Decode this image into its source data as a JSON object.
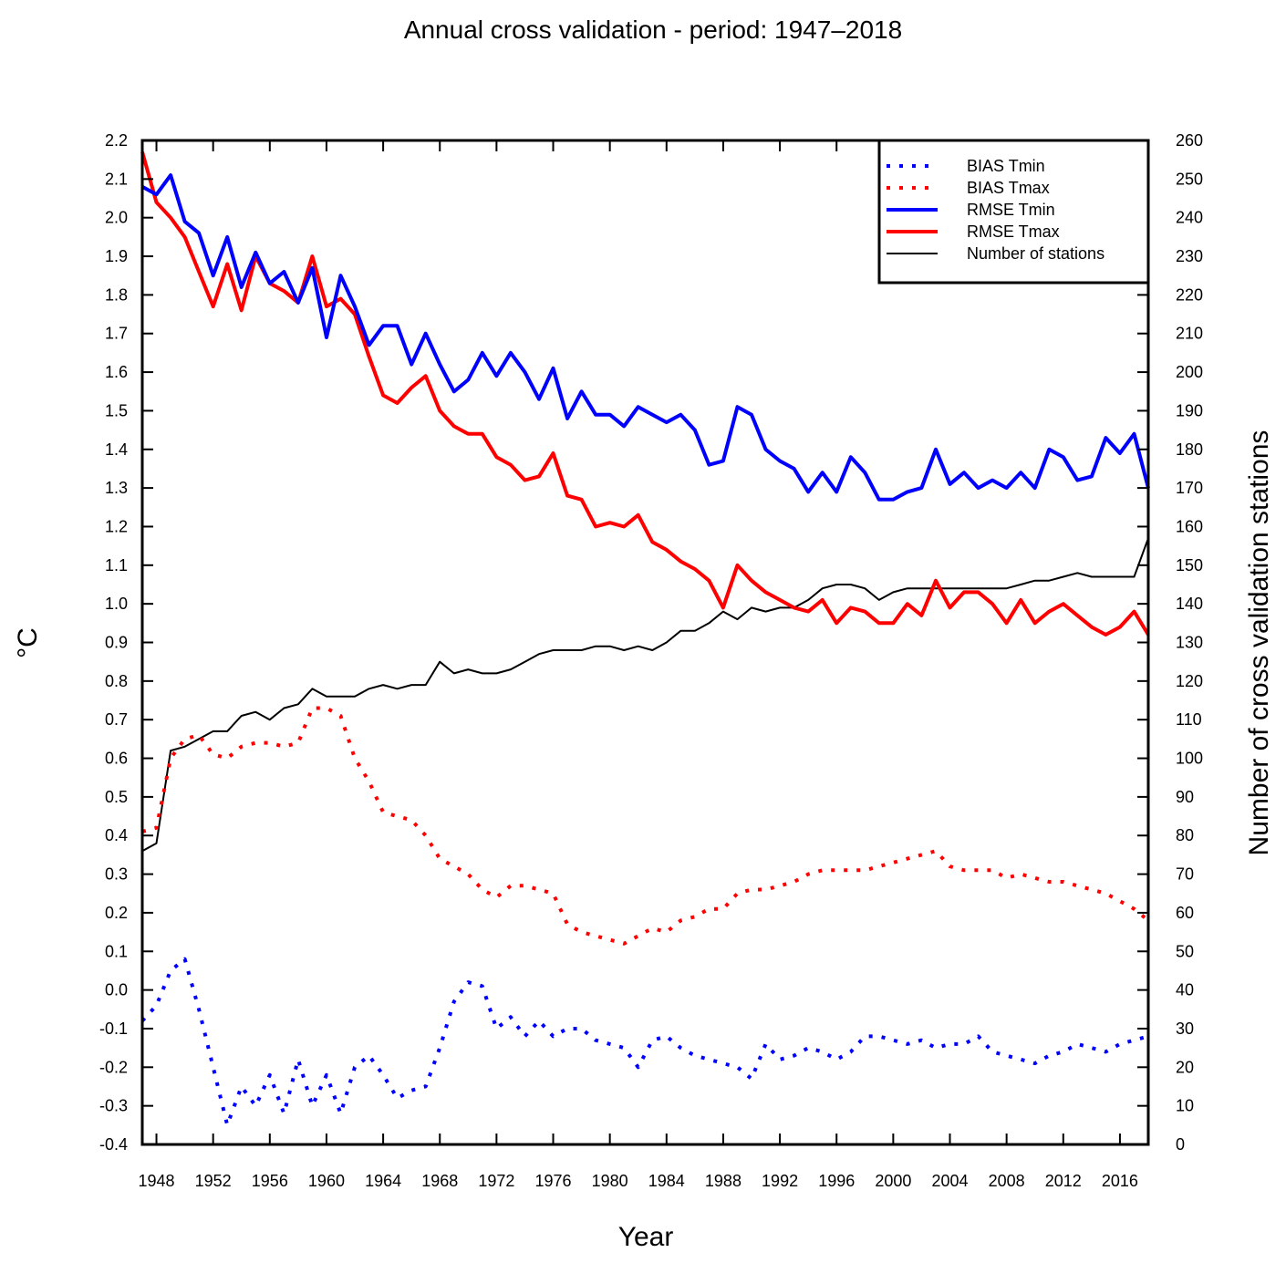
{
  "chart_data": {
    "type": "line",
    "title": "Annual cross validation - period: 1947–2018",
    "xlabel": "Year",
    "ylabel": "°C",
    "ylabel_right": "Number of cross validation stations",
    "xlim": [
      1947,
      2018
    ],
    "ylim": [
      -0.4,
      2.2
    ],
    "ylim_right": [
      0,
      260
    ],
    "x_ticks": [
      "1948",
      "1952",
      "1956",
      "1960",
      "1964",
      "1968",
      "1972",
      "1976",
      "1980",
      "1984",
      "1988",
      "1992",
      "1996",
      "2000",
      "2004",
      "2008",
      "2012",
      "2016"
    ],
    "y_ticks": [
      "-0.4",
      "-0.3",
      "-0.2",
      "-0.1",
      "0.0",
      "0.1",
      "0.2",
      "0.3",
      "0.4",
      "0.5",
      "0.6",
      "0.7",
      "0.8",
      "0.9",
      "1.0",
      "1.1",
      "1.2",
      "1.3",
      "1.4",
      "1.5",
      "1.6",
      "1.7",
      "1.8",
      "1.9",
      "2.0",
      "2.1",
      "2.2"
    ],
    "y_right_ticks": [
      "0",
      "10",
      "20",
      "30",
      "40",
      "50",
      "60",
      "70",
      "80",
      "90",
      "100",
      "110",
      "120",
      "130",
      "140",
      "150",
      "160",
      "170",
      "180",
      "190",
      "200",
      "210",
      "220",
      "230",
      "240",
      "250",
      "260"
    ],
    "grid": false,
    "legend_position": "top-right",
    "x": [
      1947,
      1948,
      1949,
      1950,
      1951,
      1952,
      1953,
      1954,
      1955,
      1956,
      1957,
      1958,
      1959,
      1960,
      1961,
      1962,
      1963,
      1964,
      1965,
      1966,
      1967,
      1968,
      1969,
      1970,
      1971,
      1972,
      1973,
      1974,
      1975,
      1976,
      1977,
      1978,
      1979,
      1980,
      1981,
      1982,
      1983,
      1984,
      1985,
      1986,
      1987,
      1988,
      1989,
      1990,
      1991,
      1992,
      1993,
      1994,
      1995,
      1996,
      1997,
      1998,
      1999,
      2000,
      2001,
      2002,
      2003,
      2004,
      2005,
      2006,
      2007,
      2008,
      2009,
      2010,
      2011,
      2012,
      2013,
      2014,
      2015,
      2016,
      2017,
      2018
    ],
    "series": [
      {
        "name": "BIAS Tmin",
        "color": "#0000ff",
        "style": "dotted",
        "axis": "left",
        "values": [
          -0.08,
          -0.04,
          0.05,
          0.08,
          -0.05,
          -0.2,
          -0.35,
          -0.25,
          -0.3,
          -0.22,
          -0.32,
          -0.18,
          -0.3,
          -0.22,
          -0.32,
          -0.2,
          -0.17,
          -0.22,
          -0.28,
          -0.26,
          -0.25,
          -0.15,
          -0.03,
          0.02,
          0.01,
          -0.1,
          -0.07,
          -0.12,
          -0.08,
          -0.12,
          -0.1,
          -0.1,
          -0.13,
          -0.14,
          -0.15,
          -0.2,
          -0.13,
          -0.12,
          -0.15,
          -0.17,
          -0.18,
          -0.19,
          -0.2,
          -0.23,
          -0.14,
          -0.18,
          -0.17,
          -0.15,
          -0.16,
          -0.18,
          -0.16,
          -0.12,
          -0.12,
          -0.13,
          -0.14,
          -0.13,
          -0.15,
          -0.14,
          -0.14,
          -0.12,
          -0.16,
          -0.17,
          -0.18,
          -0.19,
          -0.17,
          -0.16,
          -0.14,
          -0.15,
          -0.16,
          -0.14,
          -0.13,
          -0.12
        ]
      },
      {
        "name": "BIAS Tmax",
        "color": "#ff0000",
        "style": "dotted",
        "axis": "left",
        "values": [
          0.41,
          0.42,
          0.6,
          0.65,
          0.66,
          0.61,
          0.6,
          0.63,
          0.64,
          0.64,
          0.63,
          0.64,
          0.73,
          0.73,
          0.71,
          0.6,
          0.54,
          0.46,
          0.45,
          0.44,
          0.4,
          0.34,
          0.32,
          0.3,
          0.26,
          0.24,
          0.27,
          0.27,
          0.26,
          0.25,
          0.17,
          0.15,
          0.14,
          0.13,
          0.12,
          0.14,
          0.16,
          0.15,
          0.18,
          0.19,
          0.21,
          0.21,
          0.25,
          0.26,
          0.26,
          0.27,
          0.28,
          0.3,
          0.31,
          0.31,
          0.31,
          0.31,
          0.32,
          0.33,
          0.34,
          0.35,
          0.36,
          0.32,
          0.31,
          0.31,
          0.31,
          0.29,
          0.3,
          0.29,
          0.28,
          0.28,
          0.27,
          0.26,
          0.25,
          0.23,
          0.21,
          0.18
        ]
      },
      {
        "name": "RMSE Tmin",
        "color": "#0000ff",
        "style": "solid",
        "axis": "left",
        "values": [
          2.08,
          2.06,
          2.11,
          1.99,
          1.96,
          1.85,
          1.95,
          1.82,
          1.91,
          1.83,
          1.86,
          1.78,
          1.87,
          1.69,
          1.85,
          1.77,
          1.67,
          1.72,
          1.72,
          1.62,
          1.7,
          1.62,
          1.55,
          1.58,
          1.65,
          1.59,
          1.65,
          1.6,
          1.53,
          1.61,
          1.48,
          1.55,
          1.49,
          1.49,
          1.46,
          1.51,
          1.49,
          1.47,
          1.49,
          1.45,
          1.36,
          1.37,
          1.51,
          1.49,
          1.4,
          1.37,
          1.35,
          1.29,
          1.34,
          1.29,
          1.38,
          1.34,
          1.27,
          1.27,
          1.29,
          1.3,
          1.4,
          1.31,
          1.34,
          1.3,
          1.32,
          1.3,
          1.34,
          1.3,
          1.4,
          1.38,
          1.32,
          1.33,
          1.43,
          1.39,
          1.44,
          1.3
        ]
      },
      {
        "name": "RMSE Tmax",
        "color": "#ff0000",
        "style": "solid",
        "axis": "left",
        "values": [
          2.17,
          2.04,
          2.0,
          1.95,
          1.86,
          1.77,
          1.88,
          1.76,
          1.9,
          1.83,
          1.81,
          1.78,
          1.9,
          1.77,
          1.79,
          1.75,
          1.64,
          1.54,
          1.52,
          1.56,
          1.59,
          1.5,
          1.46,
          1.44,
          1.44,
          1.38,
          1.36,
          1.32,
          1.33,
          1.39,
          1.28,
          1.27,
          1.2,
          1.21,
          1.2,
          1.23,
          1.16,
          1.14,
          1.11,
          1.09,
          1.06,
          0.99,
          1.1,
          1.06,
          1.03,
          1.01,
          0.99,
          0.98,
          1.01,
          0.95,
          0.99,
          0.98,
          0.95,
          0.95,
          1.0,
          0.97,
          1.06,
          0.99,
          1.03,
          1.03,
          1.0,
          0.95,
          1.01,
          0.95,
          0.98,
          1.0,
          0.97,
          0.94,
          0.92,
          0.94,
          0.98,
          0.92
        ]
      },
      {
        "name": "Number of stations",
        "color": "#000000",
        "style": "solid",
        "axis": "right",
        "values": [
          76,
          78,
          102,
          103,
          105,
          107,
          107,
          111,
          112,
          110,
          113,
          114,
          118,
          116,
          116,
          116,
          118,
          119,
          118,
          119,
          119,
          125,
          122,
          123,
          122,
          122,
          123,
          125,
          127,
          128,
          128,
          128,
          129,
          129,
          128,
          129,
          128,
          130,
          133,
          133,
          135,
          138,
          136,
          139,
          138,
          139,
          139,
          141,
          144,
          145,
          145,
          144,
          141,
          143,
          144,
          144,
          144,
          144,
          144,
          144,
          144,
          144,
          145,
          146,
          146,
          147,
          148,
          147,
          147,
          147,
          147,
          157
        ]
      }
    ]
  }
}
